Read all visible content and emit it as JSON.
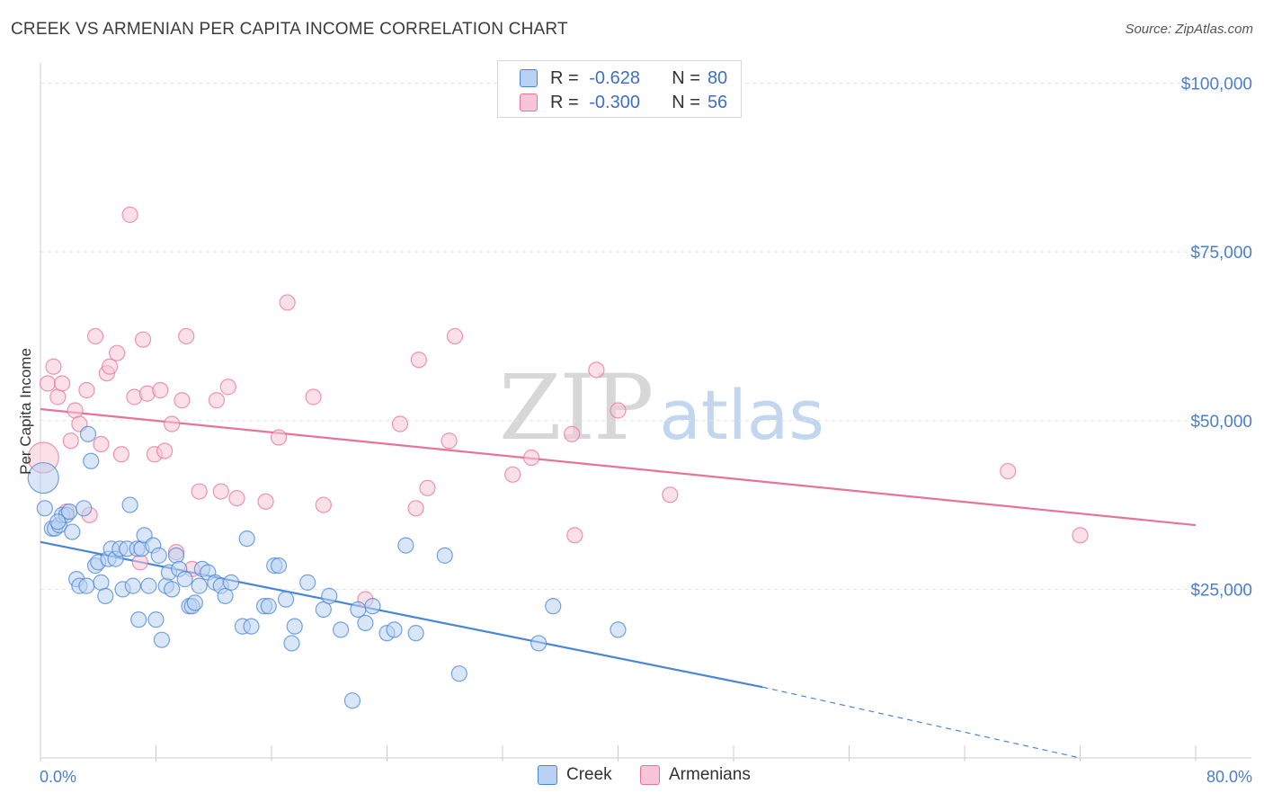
{
  "title": "CREEK VS ARMENIAN PER CAPITA INCOME CORRELATION CHART",
  "source": "Source: ZipAtlas.com",
  "watermark": {
    "zip": "ZIP",
    "atlas": "atlas"
  },
  "legend": {
    "rows": [
      {
        "r_label": "R =",
        "r_value": "-0.628",
        "n_label": "N =",
        "n_value": "80"
      },
      {
        "r_label": "R =",
        "r_value": "-0.300",
        "n_label": "N =",
        "n_value": "56"
      }
    ]
  },
  "bottom_legend": {
    "creek": "Creek",
    "armenians": "Armenians"
  },
  "colors": {
    "creek": "#4a86d8",
    "creek_fill": "#b9d1f3",
    "armenians": "#e8739a",
    "armenians_fill": "#f7c6d6",
    "tick_text": "#4a7fd0"
  },
  "chart_data": {
    "type": "scatter",
    "title": "CREEK VS ARMENIAN PER CAPITA INCOME CORRELATION CHART",
    "xlabel": "",
    "ylabel": "Per Capita Income",
    "xlim": [
      0,
      80
    ],
    "ylim": [
      0,
      103000
    ],
    "x_tick_labels": [
      "0.0%",
      "80.0%"
    ],
    "y_ticks": [
      25000,
      50000,
      75000,
      100000
    ],
    "y_tick_labels": [
      "$25,000",
      "$50,000",
      "$75,000",
      "$100,000"
    ],
    "grid": true,
    "series": [
      {
        "name": "Creek",
        "color": "#4a86d8",
        "trend": {
          "x0": 0,
          "y0": 32000,
          "x1": 50,
          "y1": 10500,
          "dash_to_x": 80,
          "dash_to_y": -700
        },
        "points": [
          [
            0.3,
            37000
          ],
          [
            0.8,
            34000
          ],
          [
            1.0,
            34000
          ],
          [
            1.3,
            34500
          ],
          [
            1.5,
            36000
          ],
          [
            1.8,
            36000
          ],
          [
            2.0,
            36500
          ],
          [
            2.2,
            33500
          ],
          [
            2.5,
            26500
          ],
          [
            2.7,
            25500
          ],
          [
            3.0,
            37000
          ],
          [
            3.2,
            25500
          ],
          [
            3.3,
            48000
          ],
          [
            3.5,
            44000
          ],
          [
            3.8,
            28500
          ],
          [
            4.0,
            29000
          ],
          [
            4.2,
            26000
          ],
          [
            4.5,
            24000
          ],
          [
            4.7,
            29500
          ],
          [
            4.9,
            31000
          ],
          [
            5.2,
            29500
          ],
          [
            5.5,
            31000
          ],
          [
            5.7,
            25000
          ],
          [
            6.0,
            31000
          ],
          [
            6.2,
            37500
          ],
          [
            6.4,
            25500
          ],
          [
            6.7,
            31000
          ],
          [
            6.8,
            20500
          ],
          [
            7.0,
            31000
          ],
          [
            7.2,
            33000
          ],
          [
            7.5,
            25500
          ],
          [
            7.8,
            31500
          ],
          [
            8.0,
            20500
          ],
          [
            8.2,
            30000
          ],
          [
            8.4,
            17500
          ],
          [
            8.7,
            25500
          ],
          [
            8.9,
            27500
          ],
          [
            9.1,
            25000
          ],
          [
            9.4,
            30000
          ],
          [
            9.6,
            28000
          ],
          [
            10.0,
            26500
          ],
          [
            10.3,
            22500
          ],
          [
            10.5,
            22500
          ],
          [
            10.7,
            23000
          ],
          [
            11.0,
            25500
          ],
          [
            11.2,
            28000
          ],
          [
            11.6,
            27500
          ],
          [
            12.1,
            26000
          ],
          [
            12.5,
            25500
          ],
          [
            12.8,
            24000
          ],
          [
            13.2,
            26000
          ],
          [
            14.0,
            19500
          ],
          [
            14.3,
            32500
          ],
          [
            14.6,
            19500
          ],
          [
            15.5,
            22500
          ],
          [
            15.8,
            22500
          ],
          [
            16.2,
            28500
          ],
          [
            16.5,
            28500
          ],
          [
            17.0,
            23500
          ],
          [
            17.4,
            17000
          ],
          [
            17.6,
            19500
          ],
          [
            18.5,
            26000
          ],
          [
            19.6,
            22000
          ],
          [
            20.0,
            24000
          ],
          [
            20.8,
            19000
          ],
          [
            21.6,
            8500
          ],
          [
            22.0,
            22000
          ],
          [
            22.5,
            20000
          ],
          [
            23.0,
            22500
          ],
          [
            24.0,
            18500
          ],
          [
            24.5,
            19000
          ],
          [
            25.3,
            31500
          ],
          [
            26.0,
            18500
          ],
          [
            28.0,
            30000
          ],
          [
            29.0,
            12500
          ],
          [
            34.5,
            17000
          ],
          [
            35.5,
            22500
          ],
          [
            40.0,
            19000
          ],
          [
            0.2,
            41500
          ],
          [
            1.2,
            35000
          ]
        ]
      },
      {
        "name": "Armenians",
        "color": "#e8739a",
        "trend": {
          "x0": 0,
          "y0": 51700,
          "x1": 80,
          "y1": 34500
        },
        "points": [
          [
            0.2,
            44500
          ],
          [
            0.5,
            55500
          ],
          [
            0.9,
            58000
          ],
          [
            1.2,
            53500
          ],
          [
            1.5,
            55500
          ],
          [
            1.8,
            36500
          ],
          [
            2.1,
            47000
          ],
          [
            2.4,
            51500
          ],
          [
            2.7,
            49500
          ],
          [
            3.2,
            54500
          ],
          [
            3.4,
            36000
          ],
          [
            3.8,
            62500
          ],
          [
            4.2,
            46500
          ],
          [
            4.6,
            57000
          ],
          [
            4.8,
            58000
          ],
          [
            5.3,
            60000
          ],
          [
            5.6,
            45000
          ],
          [
            6.2,
            80500
          ],
          [
            6.5,
            53500
          ],
          [
            6.9,
            29000
          ],
          [
            7.1,
            62000
          ],
          [
            7.4,
            54000
          ],
          [
            7.9,
            45000
          ],
          [
            8.3,
            54500
          ],
          [
            8.6,
            45500
          ],
          [
            9.1,
            49500
          ],
          [
            9.4,
            30500
          ],
          [
            9.8,
            53000
          ],
          [
            10.1,
            62500
          ],
          [
            10.5,
            28000
          ],
          [
            11.0,
            39500
          ],
          [
            12.2,
            53000
          ],
          [
            12.5,
            39500
          ],
          [
            13.0,
            55000
          ],
          [
            13.6,
            38500
          ],
          [
            15.6,
            38000
          ],
          [
            16.5,
            47500
          ],
          [
            17.1,
            67500
          ],
          [
            18.9,
            53500
          ],
          [
            19.6,
            37500
          ],
          [
            22.5,
            23500
          ],
          [
            24.9,
            49500
          ],
          [
            26.0,
            37000
          ],
          [
            26.2,
            59000
          ],
          [
            26.8,
            40000
          ],
          [
            28.3,
            47000
          ],
          [
            28.7,
            62500
          ],
          [
            32.7,
            42000
          ],
          [
            34.0,
            44500
          ],
          [
            36.8,
            48000
          ],
          [
            37.0,
            33000
          ],
          [
            38.5,
            57500
          ],
          [
            40.0,
            51500
          ],
          [
            43.6,
            39000
          ],
          [
            67.0,
            42500
          ],
          [
            72.0,
            33000
          ]
        ]
      }
    ]
  }
}
